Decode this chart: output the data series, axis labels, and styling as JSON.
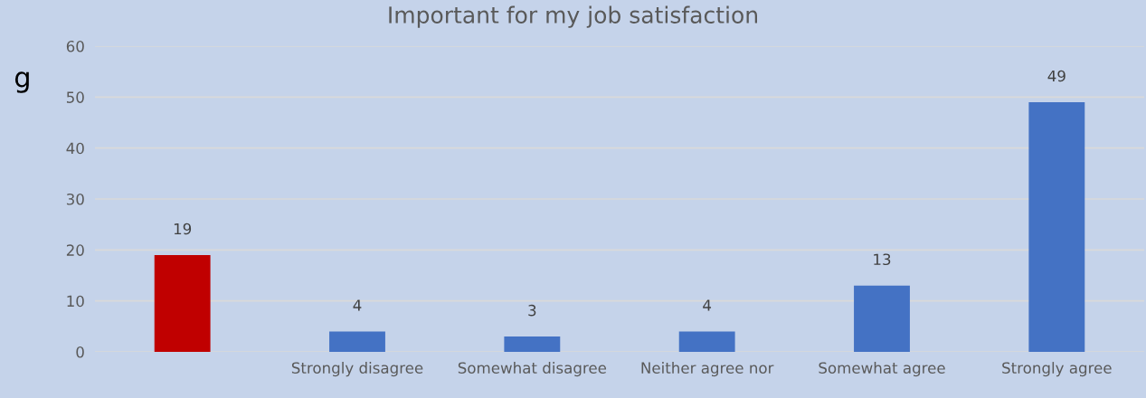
{
  "chart_data": {
    "type": "bar",
    "title": "Important for my job satisfaction",
    "categories": [
      null,
      "Strongly disagree",
      "Somewhat disagree",
      "Neither agree nor",
      "Somewhat agree",
      "Strongly agree"
    ],
    "values": [
      19,
      4,
      3,
      4,
      13,
      49
    ],
    "colors": [
      "#c00000",
      "#4472c4",
      "#4472c4",
      "#4472c4",
      "#4472c4",
      "#4472c4"
    ],
    "ylim": [
      0,
      60
    ],
    "yticks": [
      0,
      10,
      20,
      30,
      40,
      50,
      60
    ],
    "grid": "y",
    "data_labels": true,
    "annotations": [
      "g"
    ]
  }
}
